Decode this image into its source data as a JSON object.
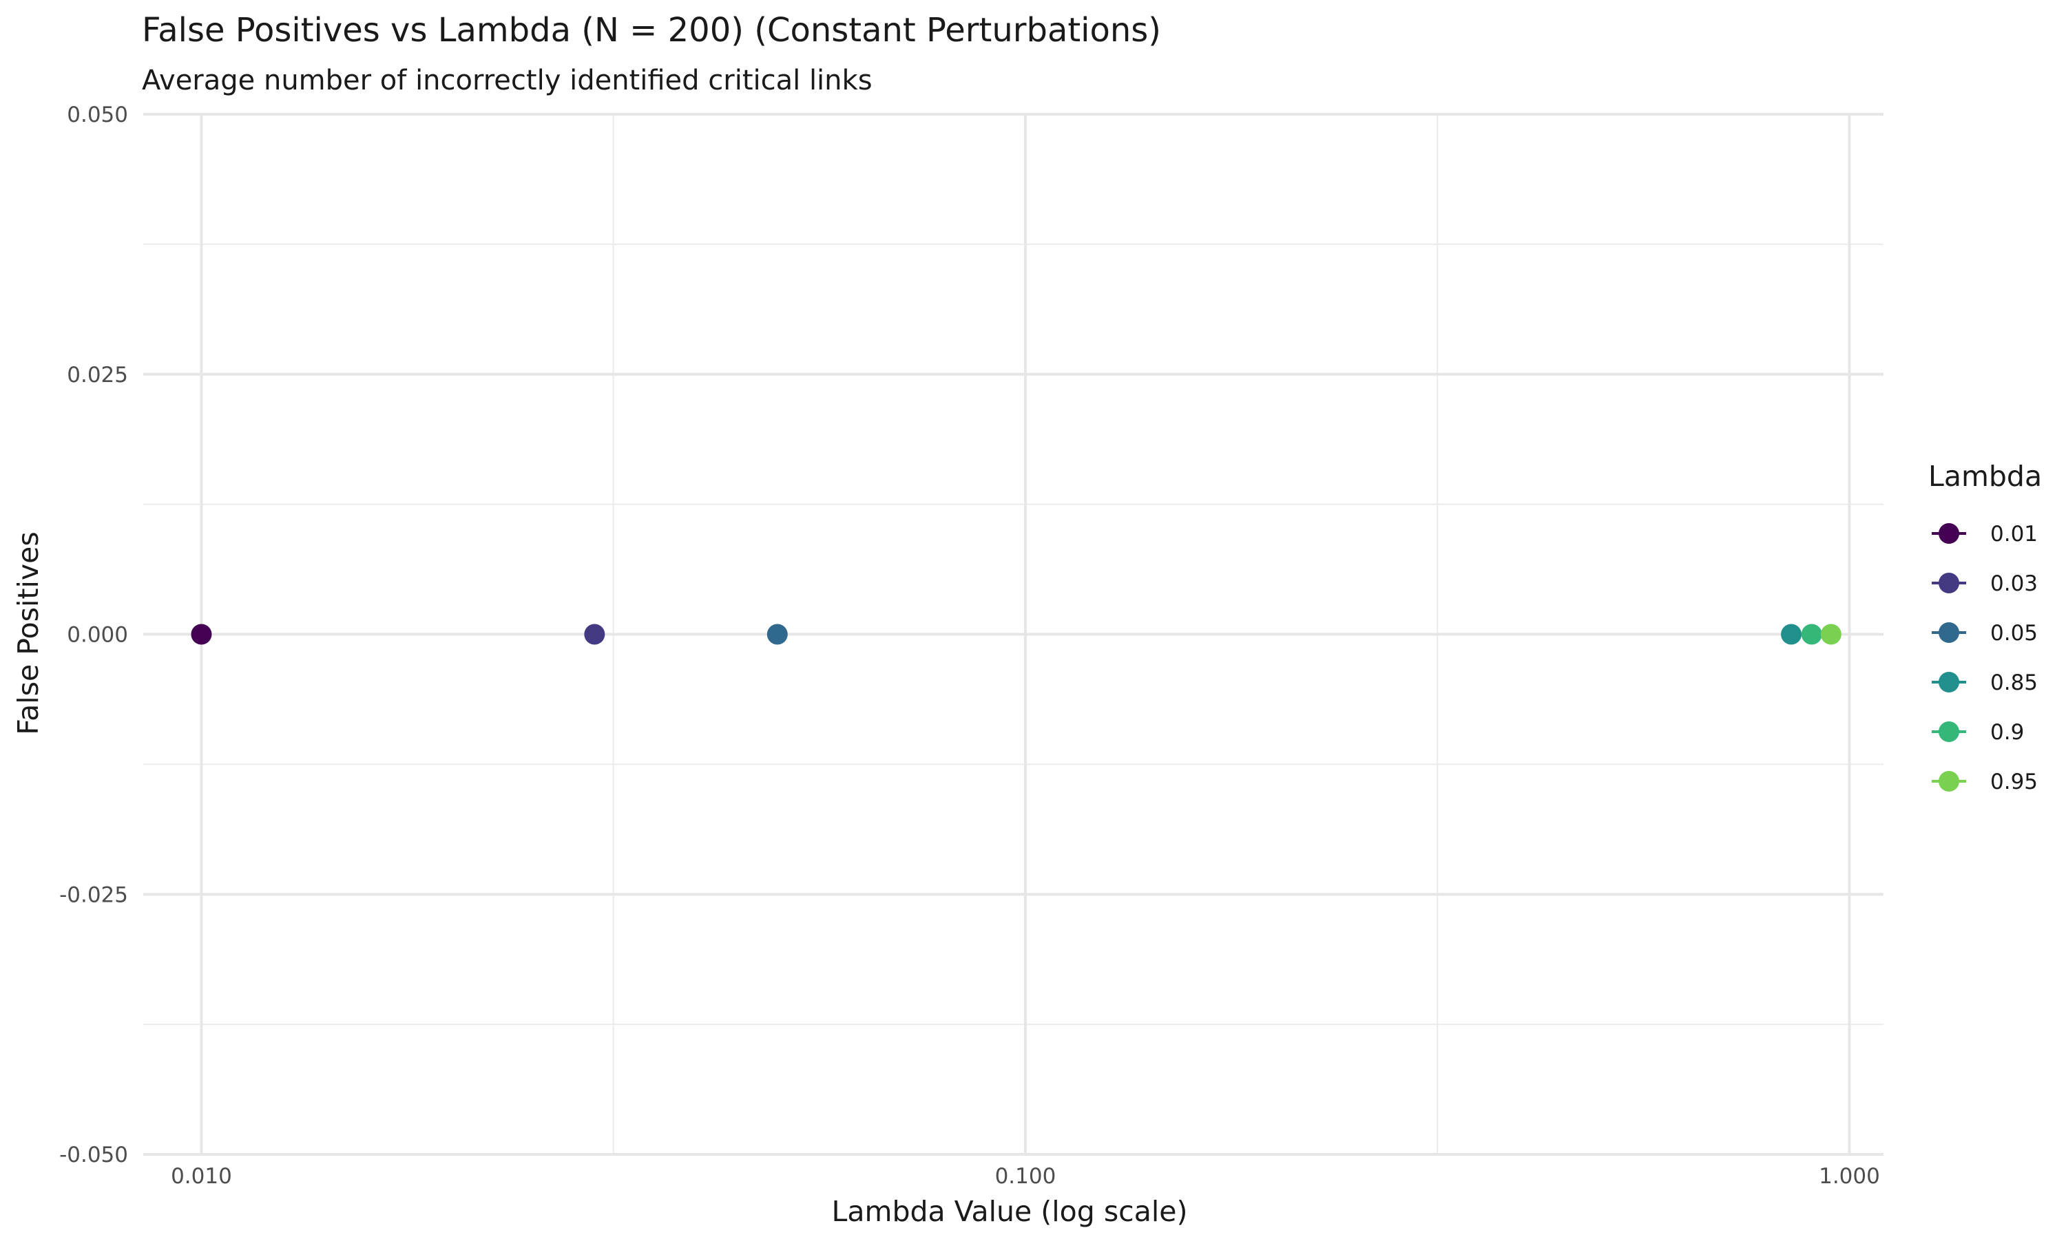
{
  "chart_data": {
    "type": "scatter",
    "title": "False Positives vs Lambda (N = 200) (Constant Perturbations)",
    "subtitle": "Average number of incorrectly identified critical links",
    "xlabel": "Lambda Value (log scale)",
    "ylabel": "False Positives",
    "x_scale": "log",
    "xlim": [
      0.0085,
      1.1
    ],
    "ylim": [
      -0.05,
      0.05
    ],
    "x_ticks": [
      0.01,
      0.1,
      1.0
    ],
    "x_tick_labels": [
      "0.010",
      "0.100",
      "1.000"
    ],
    "y_ticks": [
      -0.05,
      -0.025,
      0,
      0.025,
      0.05
    ],
    "y_tick_labels": [
      "-0.050",
      "-0.025",
      "0.000",
      "0.025",
      "0.050"
    ],
    "grid": true,
    "legend": {
      "title": "Lambda",
      "placement": "right"
    },
    "series": [
      {
        "name": "0.01",
        "x": 0.01,
        "y": 0,
        "color": "#440154"
      },
      {
        "name": "0.03",
        "x": 0.03,
        "y": 0,
        "color": "#443A83"
      },
      {
        "name": "0.05",
        "x": 0.05,
        "y": 0,
        "color": "#31688E"
      },
      {
        "name": "0.85",
        "x": 0.85,
        "y": 0,
        "color": "#21908C"
      },
      {
        "name": "0.9",
        "x": 0.9,
        "y": 0,
        "color": "#35B779"
      },
      {
        "name": "0.95",
        "x": 0.95,
        "y": 0,
        "color": "#7AD151"
      }
    ]
  }
}
